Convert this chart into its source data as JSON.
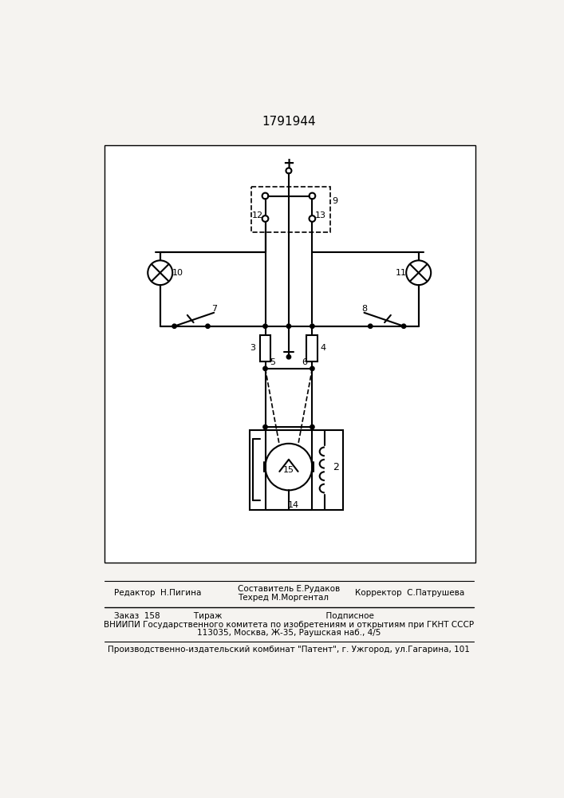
{
  "title": "1791944",
  "bg": "#f5f3f0",
  "lc": "black",
  "footer1_left": "Редактор  Н.Пигина",
  "footer1_mid1": "Составитель Е.Рудаков",
  "footer1_mid2": "Техред М.Моргентал",
  "footer1_right": "Корректор  С.Патрушева",
  "footer2": "Заказ  158             Тираж                                        Подписное",
  "footer3": "ВНИИПИ Государственного комитета по изобретениям и открытиям при ГКНТ СССР",
  "footer4": "113035, Москва, Ж-35, Раушская наб., 4/5",
  "footer5": "Производственно-издательский комбинат \"Патент\", г. Ужгород, ул.Гагарина, 101"
}
